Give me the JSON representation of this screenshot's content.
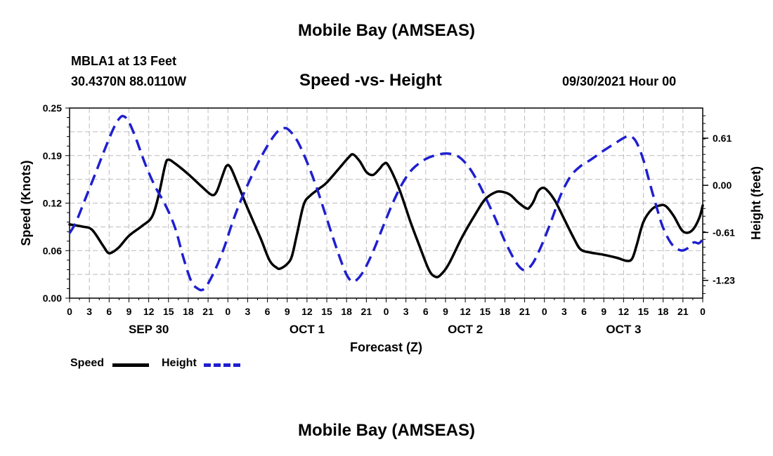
{
  "header": {
    "title": "Mobile Bay (AMSEAS)",
    "station": "MBLA1 at 13 Feet",
    "coordinates": "30.4370N  88.0110W",
    "subtitle": "Speed -vs- Height",
    "datetime": "09/30/2021 Hour 00"
  },
  "footer": {
    "title": "Mobile Bay (AMSEAS)"
  },
  "legend": {
    "speed_label": "Speed",
    "height_label": "Height"
  },
  "colors": {
    "speed": "#000000",
    "height": "#1f1fd0",
    "grid": "#bbbbbb"
  },
  "chart_data": {
    "type": "line",
    "title": "Speed -vs- Height",
    "xlabel": "Forecast (Z)",
    "ylabel": "Speed (Knots)",
    "y2label": "Height (feet)",
    "xlim": [
      0,
      96
    ],
    "ylim": [
      0,
      0.25
    ],
    "y2lim": [
      -1.46,
      1.0
    ],
    "x_tick_values": [
      0,
      3,
      6,
      9,
      12,
      15,
      18,
      21,
      24,
      27,
      30,
      33,
      36,
      39,
      42,
      45,
      48,
      51,
      54,
      57,
      60,
      63,
      66,
      69,
      72,
      75,
      78,
      81,
      84,
      87,
      90,
      93,
      96
    ],
    "x_tick_labels": [
      "0",
      "3",
      "6",
      "9",
      "12",
      "15",
      "18",
      "21",
      "0",
      "3",
      "6",
      "9",
      "12",
      "15",
      "18",
      "21",
      "0",
      "3",
      "6",
      "9",
      "12",
      "15",
      "18",
      "21",
      "0",
      "3",
      "6",
      "9",
      "12",
      "15",
      "18",
      "21",
      "0"
    ],
    "day_labels": [
      {
        "label": "SEP 30",
        "x": 12
      },
      {
        "label": "OCT 1",
        "x": 36
      },
      {
        "label": "OCT 2",
        "x": 60
      },
      {
        "label": "OCT 3",
        "x": 84
      }
    ],
    "y_ticks": [
      {
        "value": 0.0,
        "label": "0.00"
      },
      {
        "value": 0.0625,
        "label": "0.06"
      },
      {
        "value": 0.125,
        "label": "0.12"
      },
      {
        "value": 0.1875,
        "label": "0.19"
      },
      {
        "value": 0.25,
        "label": "0.25"
      }
    ],
    "y2_ticks": [
      {
        "value": 0.61,
        "label": "0.61"
      },
      {
        "value": 0.0,
        "label": "0.00"
      },
      {
        "value": -0.61,
        "label": "-0.61"
      },
      {
        "value": -1.23,
        "label": "-1.23"
      }
    ],
    "grid": true,
    "series": [
      {
        "name": "Speed",
        "axis": "left",
        "style": "solid",
        "points": [
          [
            0,
            0.097
          ],
          [
            2,
            0.094
          ],
          [
            3.4,
            0.09
          ],
          [
            5,
            0.07
          ],
          [
            5.8,
            0.06
          ],
          [
            6.4,
            0.06
          ],
          [
            7.5,
            0.067
          ],
          [
            9,
            0.082
          ],
          [
            11,
            0.095
          ],
          [
            12.5,
            0.107
          ],
          [
            13.5,
            0.135
          ],
          [
            14.5,
            0.175
          ],
          [
            15,
            0.182
          ],
          [
            16,
            0.177
          ],
          [
            18,
            0.163
          ],
          [
            20,
            0.147
          ],
          [
            21.5,
            0.136
          ],
          [
            22.3,
            0.14
          ],
          [
            23.3,
            0.164
          ],
          [
            23.8,
            0.174
          ],
          [
            24.4,
            0.172
          ],
          [
            25.5,
            0.15
          ],
          [
            27,
            0.118
          ],
          [
            29,
            0.078
          ],
          [
            30.3,
            0.05
          ],
          [
            31.4,
            0.04
          ],
          [
            32,
            0.039
          ],
          [
            33,
            0.045
          ],
          [
            33.7,
            0.055
          ],
          [
            34.5,
            0.085
          ],
          [
            35.5,
            0.123
          ],
          [
            36.5,
            0.135
          ],
          [
            38,
            0.145
          ],
          [
            39,
            0.152
          ],
          [
            41,
            0.172
          ],
          [
            42.3,
            0.185
          ],
          [
            43,
            0.189
          ],
          [
            44,
            0.18
          ],
          [
            45,
            0.166
          ],
          [
            46,
            0.162
          ],
          [
            47,
            0.17
          ],
          [
            47.6,
            0.176
          ],
          [
            48.3,
            0.175
          ],
          [
            50,
            0.143
          ],
          [
            51.7,
            0.1
          ],
          [
            53,
            0.07
          ],
          [
            54.5,
            0.037
          ],
          [
            55.5,
            0.028
          ],
          [
            56.3,
            0.031
          ],
          [
            57.5,
            0.045
          ],
          [
            59.5,
            0.08
          ],
          [
            61.5,
            0.11
          ],
          [
            63,
            0.13
          ],
          [
            64.5,
            0.139
          ],
          [
            65.5,
            0.14
          ],
          [
            66.8,
            0.136
          ],
          [
            68,
            0.126
          ],
          [
            69.3,
            0.118
          ],
          [
            69.8,
            0.12
          ],
          [
            70.4,
            0.128
          ],
          [
            71,
            0.14
          ],
          [
            71.7,
            0.145
          ],
          [
            72.4,
            0.142
          ],
          [
            73.6,
            0.128
          ],
          [
            75,
            0.104
          ],
          [
            76.5,
            0.078
          ],
          [
            77.5,
            0.064
          ],
          [
            79,
            0.06
          ],
          [
            81,
            0.057
          ],
          [
            83,
            0.053
          ],
          [
            84.5,
            0.049
          ],
          [
            85.3,
            0.052
          ],
          [
            86,
            0.07
          ],
          [
            87,
            0.1
          ],
          [
            88.3,
            0.117
          ],
          [
            89.5,
            0.122
          ],
          [
            90.4,
            0.121
          ],
          [
            91.6,
            0.108
          ],
          [
            92.7,
            0.091
          ],
          [
            93.5,
            0.086
          ],
          [
            94.5,
            0.09
          ],
          [
            95.5,
            0.106
          ],
          [
            96,
            0.122
          ]
        ]
      },
      {
        "name": "Height",
        "axis": "right",
        "style": "dashed",
        "points": [
          [
            0,
            -0.62
          ],
          [
            1,
            -0.47
          ],
          [
            2.5,
            -0.15
          ],
          [
            4,
            0.17
          ],
          [
            5.5,
            0.5
          ],
          [
            6.8,
            0.76
          ],
          [
            7.7,
            0.88
          ],
          [
            8.3,
            0.89
          ],
          [
            9,
            0.82
          ],
          [
            10,
            0.62
          ],
          [
            11.5,
            0.27
          ],
          [
            13,
            -0.02
          ],
          [
            14.5,
            -0.25
          ],
          [
            16,
            -0.55
          ],
          [
            17.3,
            -0.95
          ],
          [
            18.5,
            -1.25
          ],
          [
            19.5,
            -1.34
          ],
          [
            20.2,
            -1.35
          ],
          [
            21,
            -1.27
          ],
          [
            22.3,
            -1.05
          ],
          [
            23.5,
            -0.79
          ],
          [
            24.7,
            -0.48
          ],
          [
            26,
            -0.19
          ],
          [
            27.5,
            0.1
          ],
          [
            29,
            0.36
          ],
          [
            30.5,
            0.58
          ],
          [
            31.7,
            0.71
          ],
          [
            32.4,
            0.74
          ],
          [
            33.2,
            0.72
          ],
          [
            34.5,
            0.58
          ],
          [
            36,
            0.3
          ],
          [
            37.5,
            -0.04
          ],
          [
            39,
            -0.43
          ],
          [
            40.5,
            -0.82
          ],
          [
            41.8,
            -1.12
          ],
          [
            42.6,
            -1.23
          ],
          [
            43.3,
            -1.24
          ],
          [
            44.5,
            -1.12
          ],
          [
            46,
            -0.86
          ],
          [
            47.5,
            -0.54
          ],
          [
            49,
            -0.23
          ],
          [
            50.5,
            0.03
          ],
          [
            52,
            0.21
          ],
          [
            54,
            0.34
          ],
          [
            56,
            0.4
          ],
          [
            57.5,
            0.41
          ],
          [
            59,
            0.37
          ],
          [
            60.5,
            0.24
          ],
          [
            62,
            0.03
          ],
          [
            63.3,
            -0.2
          ],
          [
            64.5,
            -0.42
          ],
          [
            66,
            -0.72
          ],
          [
            67.5,
            -0.97
          ],
          [
            68.5,
            -1.08
          ],
          [
            69.3,
            -1.09
          ],
          [
            70.3,
            -1.0
          ],
          [
            71.5,
            -0.79
          ],
          [
            73,
            -0.47
          ],
          [
            74.5,
            -0.12
          ],
          [
            76,
            0.12
          ],
          [
            77.5,
            0.25
          ],
          [
            79,
            0.33
          ],
          [
            81,
            0.45
          ],
          [
            83,
            0.56
          ],
          [
            84.4,
            0.63
          ],
          [
            85.2,
            0.63
          ],
          [
            86,
            0.55
          ],
          [
            87,
            0.33
          ],
          [
            88,
            0.02
          ],
          [
            89,
            -0.28
          ],
          [
            90,
            -0.55
          ],
          [
            91.3,
            -0.76
          ],
          [
            92.6,
            -0.84
          ],
          [
            93.6,
            -0.82
          ],
          [
            94.6,
            -0.74
          ],
          [
            95.4,
            -0.75
          ],
          [
            96,
            -0.7
          ]
        ]
      }
    ]
  }
}
